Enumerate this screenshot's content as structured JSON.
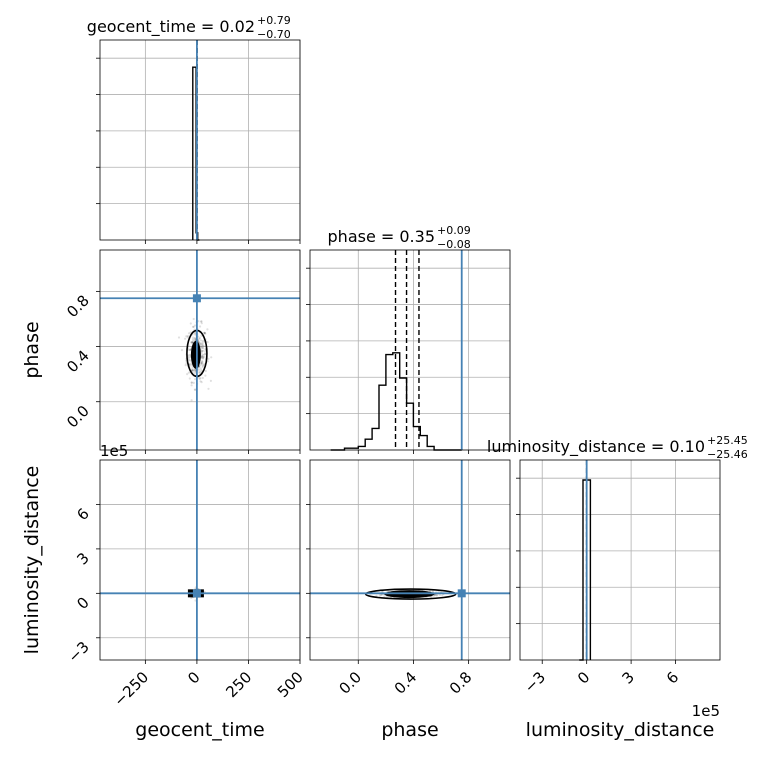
{
  "chart_data": {
    "type": "corner",
    "parameters": [
      "geocent_time",
      "phase",
      "luminosity_distance"
    ],
    "axis_labels": [
      "geocent_time",
      "phase",
      "luminosity_distance"
    ],
    "titles": [
      {
        "name": "geocent_time",
        "median": "0.02",
        "plus": "+0.79",
        "minus": "−0.70"
      },
      {
        "name": "phase",
        "median": "0.35",
        "plus": "+0.09",
        "minus": "−0.08"
      },
      {
        "name": "luminosity_distance",
        "median": "0.10",
        "plus": "+25.45",
        "minus": "−25.46"
      }
    ],
    "ranges": {
      "geocent_time": [
        -470,
        500
      ],
      "phase": [
        -0.35,
        1.1
      ],
      "luminosity_distance": [
        -450000,
        900000
      ]
    },
    "ticks": {
      "geocent_time": {
        "values": [
          -250,
          0,
          250,
          500
        ],
        "labels": [
          "−250",
          "0",
          "250",
          "500"
        ]
      },
      "phase": {
        "values": [
          0.0,
          0.4,
          0.8
        ],
        "labels": [
          "0.0",
          "0.4",
          "0.8"
        ]
      },
      "luminosity_distance": {
        "values": [
          -300000,
          0,
          300000,
          600000
        ],
        "labels": [
          "−3",
          "0",
          "3",
          "6"
        ]
      }
    },
    "offset_text": "1e5",
    "truths": {
      "geocent_time": 0,
      "phase": 0.75,
      "luminosity_distance": 0
    },
    "histograms": {
      "geocent_time": {
        "edges": [
          -20,
          -4,
          4,
          12
        ],
        "values": [
          0.96,
          0.04,
          0.0
        ],
        "quantiles": [
          -0.68,
          0.02,
          0.81
        ]
      },
      "phase": {
        "edges": [
          -0.2,
          -0.1,
          0.0,
          0.05,
          0.1,
          0.15,
          0.2,
          0.25,
          0.3,
          0.35,
          0.4,
          0.45,
          0.5,
          0.55,
          0.6,
          0.65,
          0.7,
          0.75
        ],
        "values": [
          0.0,
          0.01,
          0.02,
          0.06,
          0.12,
          0.36,
          0.53,
          0.54,
          0.4,
          0.26,
          0.13,
          0.08,
          0.02,
          0.0,
          0.0,
          0.0,
          0.0
        ],
        "quantiles": [
          0.27,
          0.35,
          0.44
        ]
      },
      "luminosity_distance": {
        "edges": [
          -50000,
          -25000,
          25000
        ],
        "values": [
          0.0,
          1.0
        ],
        "quantiles": [
          -25.36,
          0.1,
          25.55
        ]
      }
    },
    "grid": true
  }
}
